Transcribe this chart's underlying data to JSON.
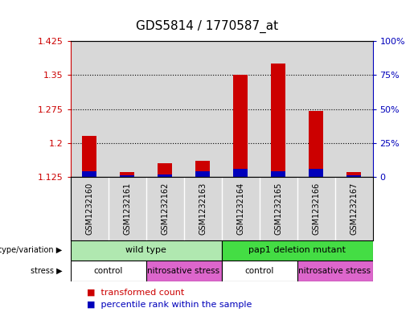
{
  "title": "GDS5814 / 1770587_at",
  "samples": [
    "GSM1232160",
    "GSM1232161",
    "GSM1232162",
    "GSM1232163",
    "GSM1232164",
    "GSM1232165",
    "GSM1232166",
    "GSM1232167"
  ],
  "red_values": [
    1.215,
    1.135,
    1.155,
    1.16,
    1.35,
    1.375,
    1.27,
    1.135
  ],
  "blue_percentile": [
    4,
    1,
    2,
    4,
    6,
    4,
    6,
    1
  ],
  "y_min": 1.125,
  "y_max": 1.425,
  "y_ticks": [
    1.125,
    1.2,
    1.275,
    1.35,
    1.425
  ],
  "y2_ticks": [
    0,
    25,
    50,
    75,
    100
  ],
  "red_color": "#cc0000",
  "blue_color": "#0000bb",
  "bg_color": "#d8d8d8",
  "wt_color": "#b0e8b0",
  "mut_color": "#44dd44",
  "control_color": "#ffffff",
  "stress_color": "#dd66cc",
  "legend_red": "transformed count",
  "legend_blue": "percentile rank within the sample",
  "axis_color_red": "#cc0000",
  "axis_color_blue": "#0000bb"
}
